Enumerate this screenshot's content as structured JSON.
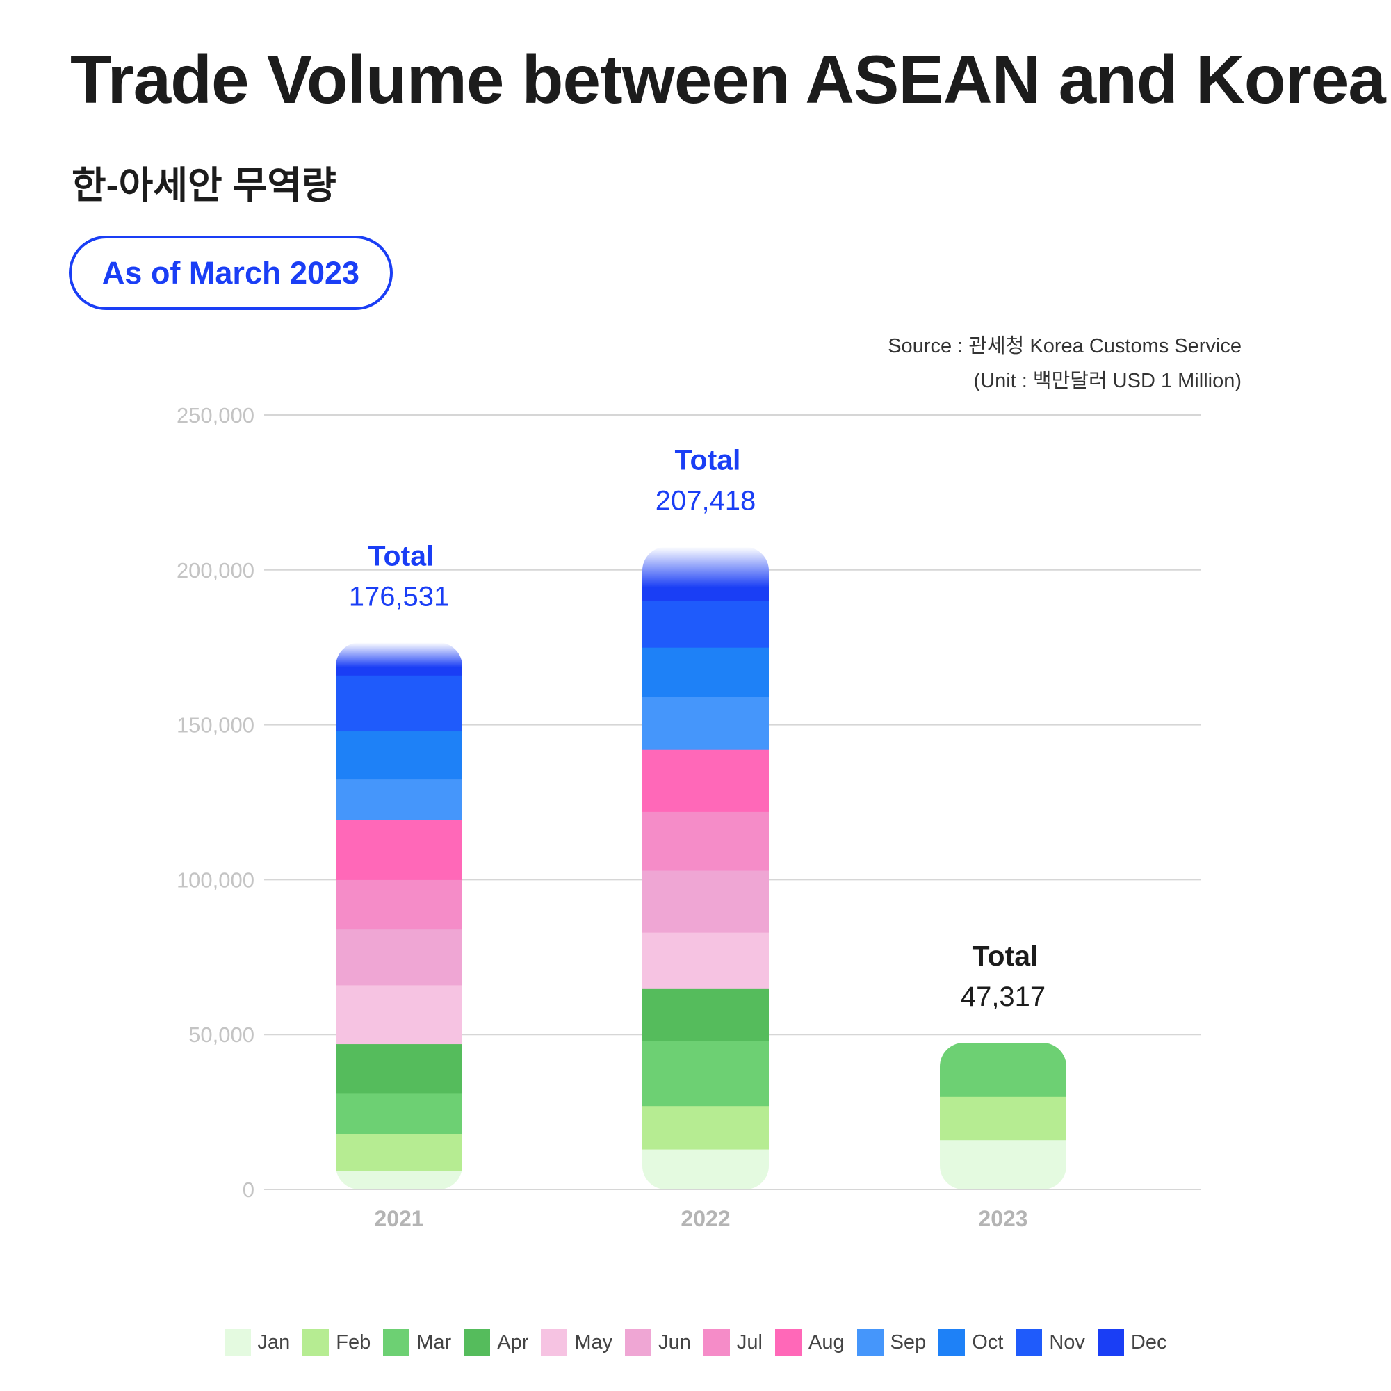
{
  "title": "Trade Volume between ASEAN and Korea",
  "subtitle": "한-아세안 무역량",
  "badge": "As of March 2023",
  "source_line": "Source : 관세청 Korea Customs Service",
  "unit_line": "(Unit : 백만달러 USD 1 Million)",
  "colors": {
    "accent": "#1a3ef5",
    "months": [
      "#e4fae0",
      "#b6ec92",
      "#6dd073",
      "#55bc5c",
      "#f6c3e2",
      "#efa6d4",
      "#f58cc8",
      "#ff68b8",
      "#4596fb",
      "#1e81f7",
      "#1f5bfb",
      "#1a3ef5"
    ]
  },
  "chart_data": {
    "type": "bar",
    "stacked": true,
    "categories": [
      "2021",
      "2022",
      "2023"
    ],
    "ylim": [
      0,
      250000
    ],
    "yticks": [
      "0",
      "50,000",
      "100,000",
      "150,000",
      "200,000",
      "250,000"
    ],
    "grid": true,
    "legend_position": "bottom",
    "series": [
      {
        "name": "Jan",
        "values": [
          6000,
          13000,
          16000
        ]
      },
      {
        "name": "Feb",
        "values": [
          12000,
          14000,
          14000
        ]
      },
      {
        "name": "Mar",
        "values": [
          13000,
          21000,
          17317
        ]
      },
      {
        "name": "Apr",
        "values": [
          16000,
          17000,
          null
        ]
      },
      {
        "name": "May",
        "values": [
          19000,
          18000,
          null
        ]
      },
      {
        "name": "Jun",
        "values": [
          18000,
          20000,
          null
        ]
      },
      {
        "name": "Jul",
        "values": [
          16000,
          19000,
          null
        ]
      },
      {
        "name": "Aug",
        "values": [
          19500,
          20000,
          null
        ]
      },
      {
        "name": "Sep",
        "values": [
          13000,
          17000,
          null
        ]
      },
      {
        "name": "Oct",
        "values": [
          15500,
          16000,
          null
        ]
      },
      {
        "name": "Nov",
        "values": [
          18000,
          15000,
          null
        ]
      },
      {
        "name": "Dec",
        "values": [
          10531,
          17418,
          null
        ]
      }
    ],
    "totals": [
      {
        "label": "Total",
        "value": "176,531"
      },
      {
        "label": "Total",
        "value": "207,418"
      },
      {
        "label": "Total",
        "value": "47,317"
      }
    ]
  }
}
